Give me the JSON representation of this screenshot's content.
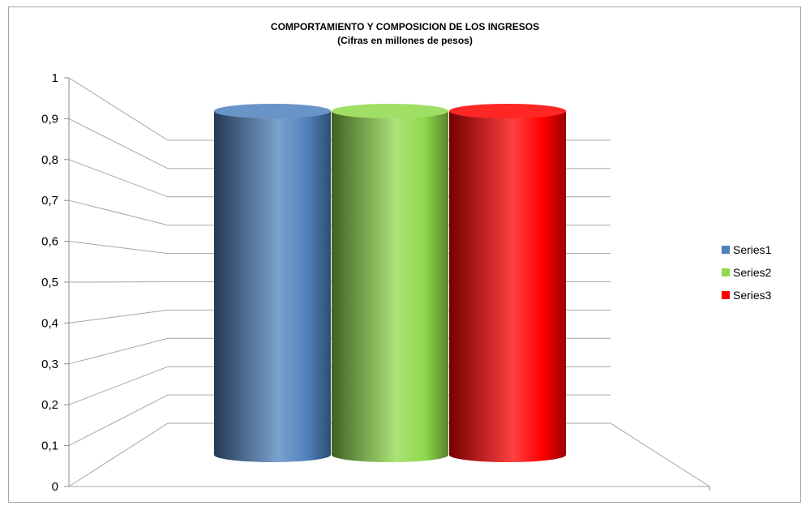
{
  "chart_data": {
    "type": "bar",
    "title": "COMPORTAMIENTO Y COMPOSICION DE LOS INGRESOS",
    "subtitle": "(Cifras en millones de pesos)",
    "categories": [
      ""
    ],
    "series": [
      {
        "name": "Series1",
        "values": [
          0.9
        ],
        "color": "#4f81bd"
      },
      {
        "name": "Series2",
        "values": [
          0.9
        ],
        "color": "#8fd94b"
      },
      {
        "name": "Series3",
        "values": [
          0.9
        ],
        "color": "#ff0000"
      }
    ],
    "ylim": [
      0,
      1
    ],
    "yticks": [
      "0",
      "0,1",
      "0,2",
      "0,3",
      "0,4",
      "0,5",
      "0,6",
      "0,7",
      "0,8",
      "0,9",
      "1"
    ],
    "grid": true,
    "legend_position": "right"
  }
}
